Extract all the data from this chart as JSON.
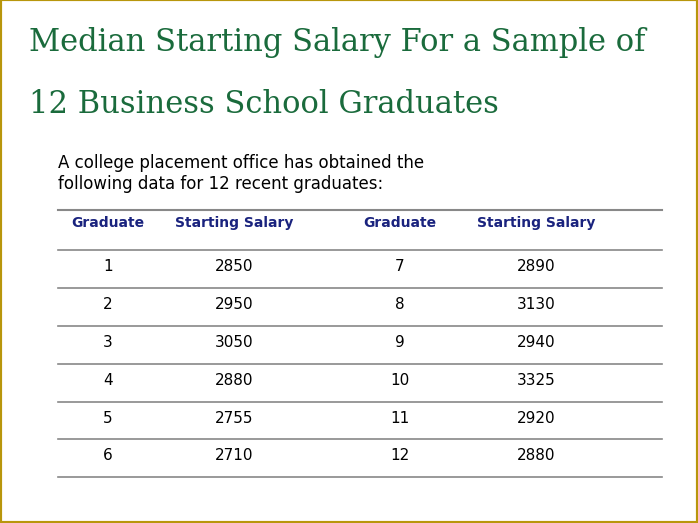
{
  "title_line1": "Median Starting Salary For a Sample of",
  "title_line2": "12 Business School Graduates",
  "subtitle_line1": "A college placement office has obtained the",
  "subtitle_line2": "following data for 12 recent graduates:",
  "title_color": "#1a6b3c",
  "header_color": "#1a237e",
  "data_color": "#000000",
  "subtitle_color": "#000000",
  "bg_color": "#ffffff",
  "border_color": "#b8960c",
  "table_line_color": "#888888",
  "col_headers": [
    "Graduate",
    "Starting Salary",
    "Graduate",
    "Starting Salary"
  ],
  "rows": [
    [
      1,
      2850,
      7,
      2890
    ],
    [
      2,
      2950,
      8,
      3130
    ],
    [
      3,
      3050,
      9,
      2940
    ],
    [
      4,
      2880,
      10,
      3325
    ],
    [
      5,
      2755,
      11,
      2920
    ],
    [
      6,
      2710,
      12,
      2880
    ]
  ],
  "title_fontsize": 22,
  "subtitle_fontsize": 12,
  "header_fontsize": 10,
  "data_fontsize": 11
}
